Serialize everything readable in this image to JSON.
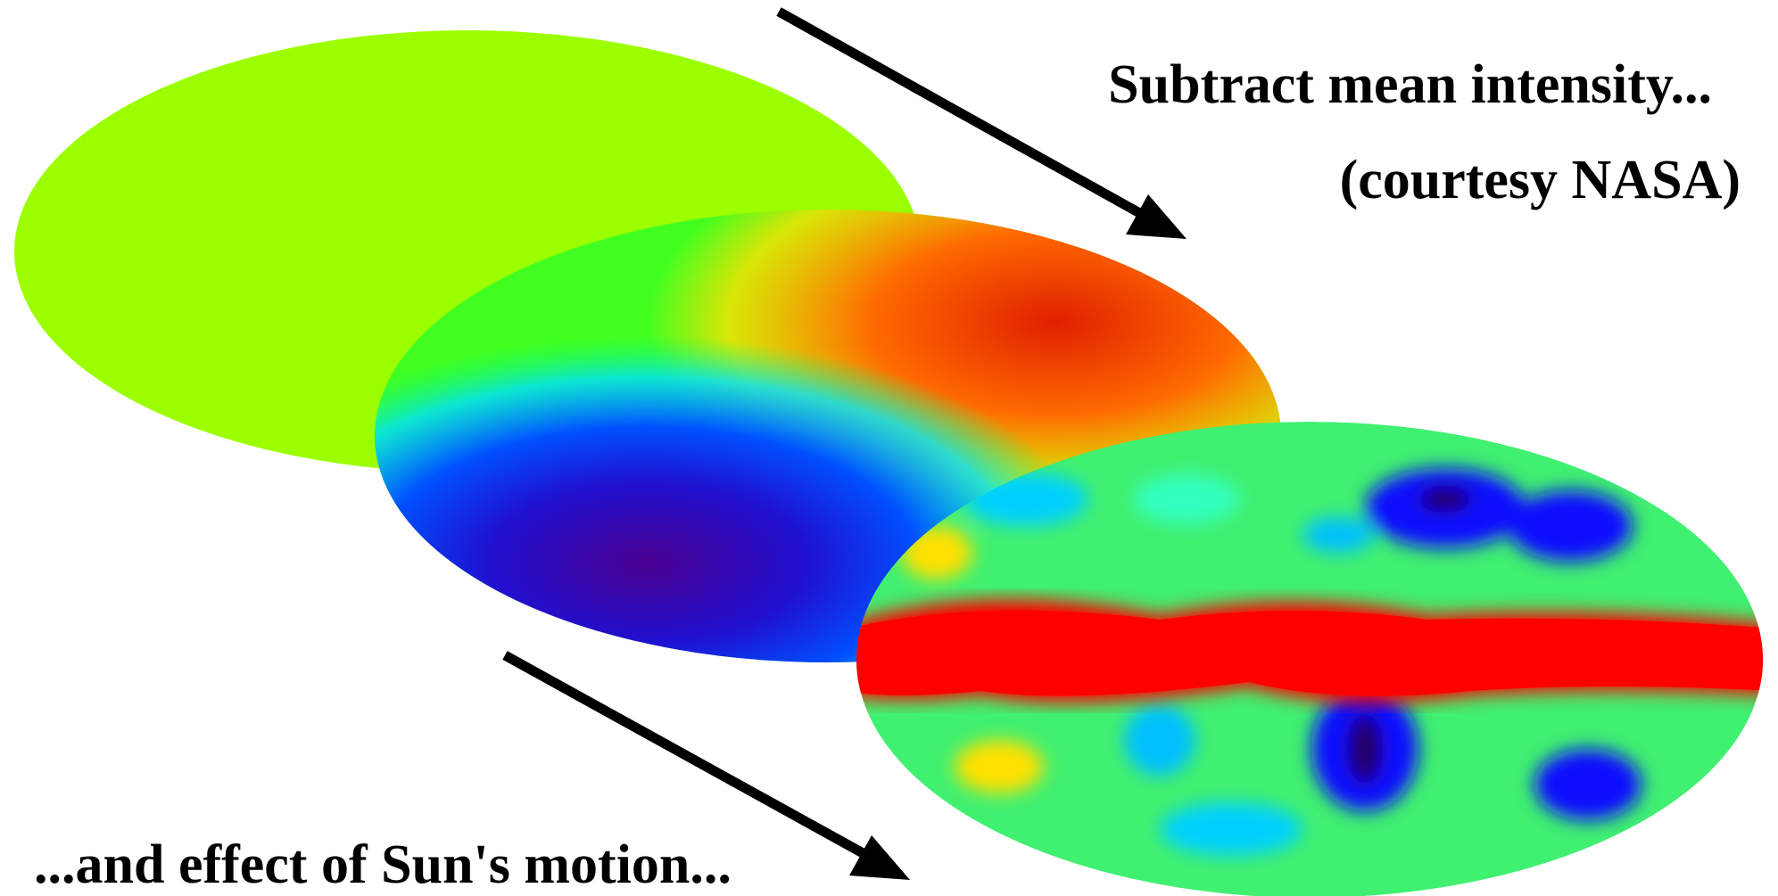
{
  "annotations": {
    "subtract": "Subtract mean intensity...",
    "courtesy": "(courtesy NASA)",
    "sun_motion": "...and effect of Sun's motion..."
  }
}
